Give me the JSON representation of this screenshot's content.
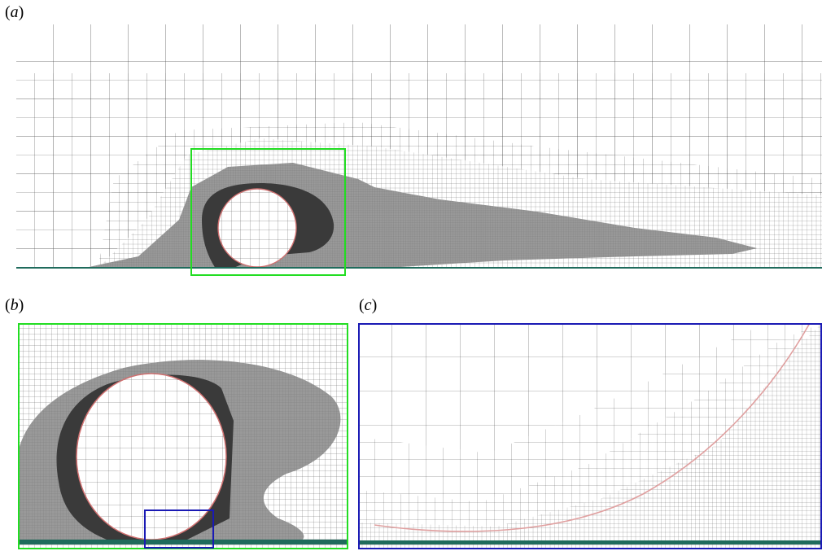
{
  "figure": {
    "panels": [
      {
        "id": "a",
        "label": "a"
      },
      {
        "id": "b",
        "label": "b"
      },
      {
        "id": "c",
        "label": "c"
      }
    ]
  },
  "colors": {
    "mesh_line": "#555555",
    "fine_region": "#999999",
    "core_region": "#3a3a3a",
    "wall": "#1f6b5c",
    "circle": "#d07070",
    "zoom_box_b": "#22dd22",
    "zoom_box_c": "#1a1ab4"
  }
}
